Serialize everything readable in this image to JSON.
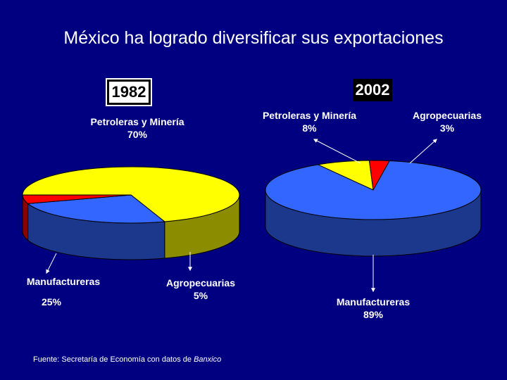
{
  "title": "México ha logrado diversificar sus exportaciones",
  "source": {
    "prefix": "Fuente: Secretaría de Economía con datos de ",
    "italic": "Banxico"
  },
  "colors": {
    "background": "#000080",
    "petroleras": "#ffff00",
    "manufactureras": "#3366ff",
    "agropecuarias": "#ff0000"
  },
  "chart_data": [
    {
      "type": "pie",
      "title": "1982",
      "slices": [
        {
          "label": "Petroleras y Minería",
          "value": 70,
          "display": "70%"
        },
        {
          "label": "Manufactureras",
          "value": 25,
          "display": "25%"
        },
        {
          "label": "Agropecuarias",
          "value": 5,
          "display": "5%"
        }
      ]
    },
    {
      "type": "pie",
      "title": "2002",
      "slices": [
        {
          "label": "Petroleras y Minería",
          "value": 8,
          "display": "8%"
        },
        {
          "label": "Agropecuarias",
          "value": 3,
          "display": "3%"
        },
        {
          "label": "Manufactureras",
          "value": 89,
          "display": "89%"
        }
      ]
    }
  ]
}
